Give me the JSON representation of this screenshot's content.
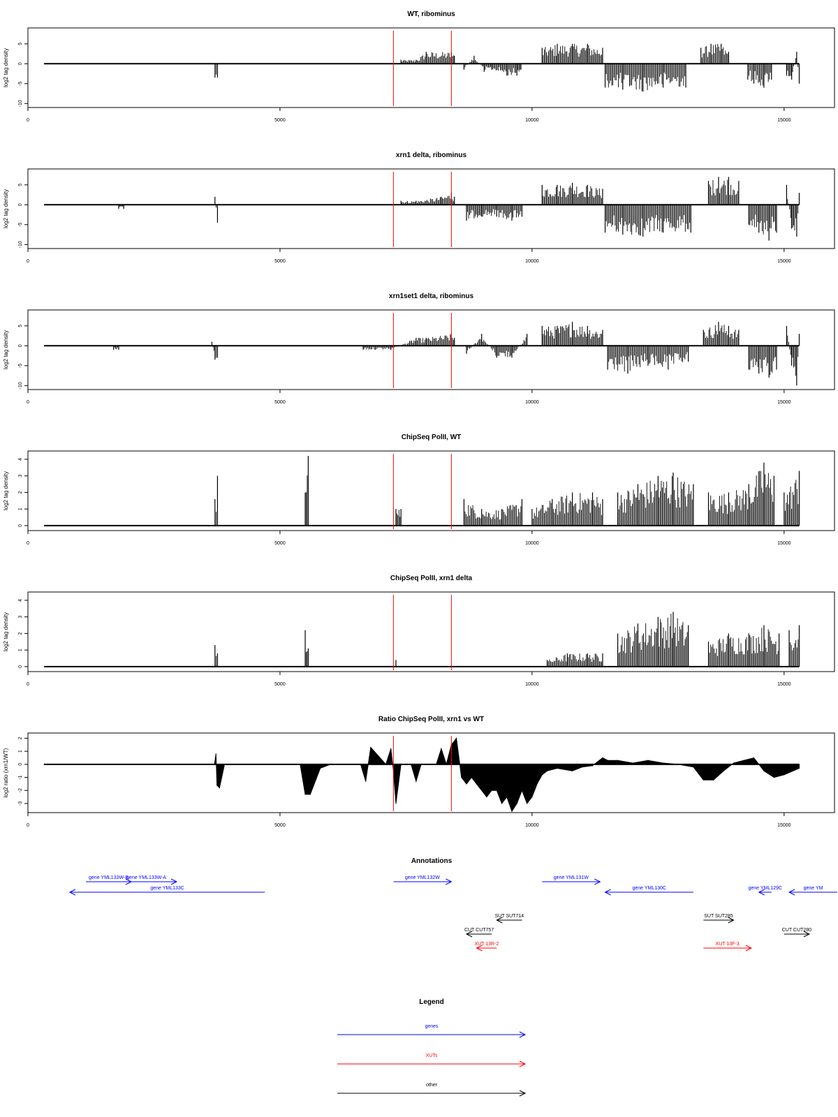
{
  "colors": {
    "genes": "#0000ff",
    "xuts": "#ff0000",
    "other": "#000000",
    "marker": "#ff0000",
    "trace": "#000000"
  },
  "x_axis": {
    "range": [
      0,
      16000
    ],
    "ticks": [
      0,
      5000,
      10000,
      15000
    ],
    "tick_labels": [
      "0",
      "5000",
      "10000",
      "15000"
    ]
  },
  "red_markers": [
    7250,
    8400
  ],
  "chart_data": [
    {
      "type": "bar",
      "title": "WT, ribominus",
      "ylabel": "log2 tag density",
      "ylim": [
        -11,
        9
      ],
      "yticks": [
        -10,
        -5,
        0,
        5
      ],
      "ytick_labels": [
        "-10",
        "-5",
        "0",
        "5"
      ],
      "x_extent": [
        320,
        15300
      ],
      "series": [
        {
          "x": [
            3710,
            3760
          ],
          "values": [
            -3.5,
            -3.5
          ]
        },
        {
          "x": [
            7400,
            7700,
            7900,
            8400,
            8460
          ],
          "values": [
            1,
            1,
            3,
            3,
            2
          ]
        },
        {
          "x": [
            8650,
            8850,
            9050,
            9200,
            9500,
            9700,
            9780
          ],
          "values": [
            -1.5,
            2,
            -2,
            -1.5,
            -3,
            -3,
            -1.5
          ]
        },
        {
          "x": [
            10200,
            10500,
            10800,
            11100,
            11400
          ],
          "values": [
            4,
            5,
            5,
            5,
            4
          ]
        },
        {
          "x": [
            11450,
            11800,
            12200,
            12600,
            13050
          ],
          "values": [
            -6,
            -6.5,
            -7,
            -6,
            -6
          ]
        },
        {
          "x": [
            13350,
            13550,
            13750,
            13900
          ],
          "values": [
            4,
            5,
            5,
            3
          ]
        },
        {
          "x": [
            14280,
            14400,
            14600,
            14750
          ],
          "values": [
            -4,
            -5,
            -6,
            -4
          ]
        },
        {
          "x": [
            15050,
            15150,
            15250,
            15300
          ],
          "values": [
            -3,
            -4,
            3,
            -5
          ]
        }
      ]
    },
    {
      "type": "bar",
      "title": "xrn1 delta, ribominus",
      "ylabel": "log2 tag density",
      "ylim": [
        -11,
        9
      ],
      "yticks": [
        -10,
        -5,
        0,
        5
      ],
      "ytick_labels": [
        "-10",
        "-5",
        "0",
        "5"
      ],
      "x_extent": [
        320,
        15300
      ],
      "series": [
        {
          "x": [
            1800,
            1900
          ],
          "values": [
            -1,
            -1
          ]
        },
        {
          "x": [
            3710,
            3760
          ],
          "values": [
            2,
            -4.5
          ]
        },
        {
          "x": [
            7400,
            7700,
            8200,
            8400,
            8460
          ],
          "values": [
            1,
            1,
            2,
            3,
            2
          ]
        },
        {
          "x": [
            8700,
            9000,
            9300,
            9600,
            9800
          ],
          "values": [
            -4,
            -3,
            -3,
            -4,
            -3
          ]
        },
        {
          "x": [
            10200,
            10500,
            10800,
            11100,
            11400
          ],
          "values": [
            5,
            5,
            5.5,
            5,
            4
          ]
        },
        {
          "x": [
            11450,
            11800,
            12200,
            12600,
            13150
          ],
          "values": [
            -7,
            -7.5,
            -8,
            -7,
            -7
          ]
        },
        {
          "x": [
            13500,
            13700,
            13900,
            14100
          ],
          "values": [
            6,
            7,
            7,
            6
          ]
        },
        {
          "x": [
            14300,
            14500,
            14700,
            14850
          ],
          "values": [
            -5,
            -7,
            -9,
            -7
          ]
        },
        {
          "x": [
            15050,
            15150,
            15250,
            15300
          ],
          "values": [
            5,
            -6,
            -8,
            3
          ]
        }
      ]
    },
    {
      "type": "bar",
      "title": "xrn1set1 delta, ribominus",
      "ylabel": "log2 tag density",
      "ylim": [
        -11,
        9
      ],
      "yticks": [
        -10,
        -5,
        0,
        5
      ],
      "ytick_labels": [
        "-10",
        "-5",
        "0",
        "5"
      ],
      "x_extent": [
        320,
        15300
      ],
      "series": [
        {
          "x": [
            1700,
            1800
          ],
          "values": [
            -1,
            -1
          ]
        },
        {
          "x": [
            3650,
            3710,
            3760
          ],
          "values": [
            1,
            -3.5,
            -3
          ]
        },
        {
          "x": [
            6650,
            7200,
            7700,
            7900,
            8400,
            8460
          ],
          "values": [
            -1,
            -1,
            2,
            2,
            3,
            2
          ]
        },
        {
          "x": [
            8700,
            9000,
            9300,
            9600,
            9900
          ],
          "values": [
            -2,
            3,
            -3,
            -3,
            3
          ]
        },
        {
          "x": [
            10200,
            10500,
            10800,
            11100,
            11400
          ],
          "values": [
            5,
            5,
            6,
            5,
            4
          ]
        },
        {
          "x": [
            11500,
            11900,
            12300,
            12700,
            13100
          ],
          "values": [
            -6,
            -7,
            -5,
            -6,
            -4
          ]
        },
        {
          "x": [
            13400,
            13700,
            13900,
            14100
          ],
          "values": [
            4,
            6,
            5,
            4
          ]
        },
        {
          "x": [
            14300,
            14500,
            14700,
            14850
          ],
          "values": [
            -6,
            -7,
            -8,
            -6
          ]
        },
        {
          "x": [
            15050,
            15150,
            15250,
            15300
          ],
          "values": [
            5,
            -5,
            -10,
            3
          ]
        }
      ]
    },
    {
      "type": "bar",
      "title": "ChipSeq PolII, WT",
      "ylabel": "log2 tag density",
      "ylim": [
        -0.3,
        4.5
      ],
      "yticks": [
        0,
        1,
        2,
        3,
        4
      ],
      "ytick_labels": [
        "0",
        "1",
        "2",
        "3",
        "4"
      ],
      "x_extent": [
        320,
        15300
      ],
      "series": [
        {
          "x": [
            3710,
            3760
          ],
          "values": [
            1.6,
            3
          ]
        },
        {
          "x": [
            5500,
            5560
          ],
          "values": [
            2,
            4.2
          ]
        },
        {
          "x": [
            7300,
            7400
          ],
          "values": [
            1,
            1
          ]
        },
        {
          "x": [
            8650,
            9000,
            9400,
            9800
          ],
          "values": [
            1.6,
            1,
            1,
            1.6
          ]
        },
        {
          "x": [
            10000,
            10400,
            10800,
            11200,
            11400
          ],
          "values": [
            1,
            1.6,
            2,
            2,
            1.6
          ]
        },
        {
          "x": [
            11700,
            12100,
            12500,
            12800,
            13200
          ],
          "values": [
            2,
            2.5,
            3,
            3.2,
            2.5
          ]
        },
        {
          "x": [
            13500,
            13900,
            14300,
            14600,
            14800
          ],
          "values": [
            2,
            2,
            2.5,
            3.8,
            3
          ]
        },
        {
          "x": [
            15000,
            15300
          ],
          "values": [
            2,
            3.3
          ]
        }
      ]
    },
    {
      "type": "bar",
      "title": "ChipSeq PolII, xrn1 delta",
      "ylabel": "log2 tag density",
      "ylim": [
        -0.3,
        4.5
      ],
      "yticks": [
        0,
        1,
        2,
        3,
        4
      ],
      "ytick_labels": [
        "0",
        "1",
        "2",
        "3",
        "4"
      ],
      "x_extent": [
        320,
        15300
      ],
      "series": [
        {
          "x": [
            3710,
            3760
          ],
          "values": [
            1.3,
            0.8
          ]
        },
        {
          "x": [
            5500,
            5560
          ],
          "values": [
            2.2,
            1.1
          ]
        },
        {
          "x": [
            7300
          ],
          "values": [
            0.4
          ]
        },
        {
          "x": [
            10300,
            10700,
            11100,
            11400
          ],
          "values": [
            0.4,
            0.8,
            0.8,
            0.8
          ]
        },
        {
          "x": [
            11700,
            12100,
            12500,
            12800,
            13100
          ],
          "values": [
            2,
            2.6,
            3,
            3.3,
            2.5
          ]
        },
        {
          "x": [
            13500,
            13900,
            14300,
            14600,
            14900
          ],
          "values": [
            1.5,
            2,
            2,
            2.5,
            2
          ]
        },
        {
          "x": [
            15100,
            15300
          ],
          "values": [
            2.2,
            2.5
          ]
        }
      ]
    },
    {
      "type": "area",
      "title": "Ratio ChipSeq PolII, xrn1 vs WT",
      "ylabel": "log2 ratio (xrn1/WT)",
      "ylim": [
        -3.7,
        2.4
      ],
      "yticks": [
        -3,
        -2,
        -1,
        0,
        1,
        2
      ],
      "ytick_labels": [
        "-3",
        "-2",
        "-1",
        "0",
        "1",
        "2"
      ],
      "x_extent": [
        320,
        15300
      ],
      "x": [
        320,
        3700,
        3730,
        3750,
        3800,
        3900,
        5400,
        5500,
        5600,
        5800,
        6000,
        6600,
        6700,
        6800,
        7100,
        7200,
        7250,
        7300,
        7400,
        7600,
        7700,
        7800,
        8100,
        8200,
        8300,
        8400,
        8500,
        8600,
        8700,
        8800,
        8900,
        9000,
        9100,
        9200,
        9300,
        9400,
        9500,
        9600,
        9700,
        9800,
        9900,
        10000,
        10100,
        10200,
        10300,
        10500,
        10800,
        11000,
        11200,
        11400,
        11500,
        11700,
        12000,
        12300,
        12600,
        12900,
        13200,
        13400,
        13600,
        13800,
        14000,
        14200,
        14400,
        14600,
        14800,
        15000,
        15300
      ],
      "values": [
        0,
        0,
        0.8,
        -1.6,
        -1.8,
        0,
        0,
        -2.3,
        -2.3,
        -0.3,
        0,
        0,
        -1.3,
        1.3,
        0,
        1.2,
        -0.5,
        -3,
        0,
        0,
        -1.3,
        0,
        0,
        1.2,
        0,
        1.5,
        2,
        -1,
        -1.5,
        -1,
        -1.5,
        -2,
        -2.5,
        -2,
        -2,
        -3,
        -2.5,
        -3.6,
        -3,
        -2,
        -3,
        -2.5,
        -1.5,
        -0.8,
        -0.5,
        -0.3,
        -0.5,
        -0.2,
        -0.1,
        0.5,
        0.3,
        0.3,
        0.1,
        0.3,
        0.1,
        0,
        -0.2,
        -1.2,
        -1.2,
        -0.5,
        0.1,
        0.3,
        0.5,
        -0.5,
        -1,
        -0.8,
        -0.3
      ]
    }
  ],
  "annotations": {
    "title": "Annotations",
    "features": [
      {
        "label": "gene YML133W-B",
        "kind": "genes",
        "start": 1150,
        "end": 2050,
        "strand": "+",
        "row": 0
      },
      {
        "label": "gene YML133W-A",
        "kind": "genes",
        "start": 1750,
        "end": 2950,
        "strand": "+",
        "row": 0
      },
      {
        "label": "gene YML133C",
        "kind": "genes",
        "start": 830,
        "end": 4700,
        "strand": "-",
        "row": 1
      },
      {
        "label": "gene YML132W",
        "kind": "genes",
        "start": 7250,
        "end": 8400,
        "strand": "+",
        "row": 0
      },
      {
        "label": "gene YML131W",
        "kind": "genes",
        "start": 10200,
        "end": 11350,
        "strand": "+",
        "row": 0
      },
      {
        "label": "gene YML130C",
        "kind": "genes",
        "start": 11450,
        "end": 13200,
        "strand": "-",
        "row": 1
      },
      {
        "label": "gene YML129C",
        "kind": "genes",
        "start": 14500,
        "end": 14750,
        "strand": "-",
        "row": 1
      },
      {
        "label": "gene YM",
        "kind": "genes",
        "start": 15100,
        "end": 16200,
        "strand": "-",
        "row": 1
      },
      {
        "label": "SUT SUT714",
        "kind": "other",
        "start": 9300,
        "end": 9800,
        "strand": "-",
        "row": 3
      },
      {
        "label": "CUT CUT757",
        "kind": "other",
        "start": 8700,
        "end": 9200,
        "strand": "-",
        "row": 4
      },
      {
        "label": "XUT 13R-2",
        "kind": "xuts",
        "start": 8900,
        "end": 9300,
        "strand": "-",
        "row": 5
      },
      {
        "label": "SUT SUT285",
        "kind": "other",
        "start": 13400,
        "end": 14000,
        "strand": "+",
        "row": 3
      },
      {
        "label": "CUT CUT280",
        "kind": "other",
        "start": 15000,
        "end": 15500,
        "strand": "+",
        "row": 4
      },
      {
        "label": "XUT 13F-3",
        "kind": "xuts",
        "start": 13400,
        "end": 14350,
        "strand": "+",
        "row": 5
      }
    ]
  },
  "legend": {
    "title": "Legend",
    "entries": [
      {
        "label": "genes",
        "kind": "genes"
      },
      {
        "label": "XUTs",
        "kind": "xuts"
      },
      {
        "label": "other",
        "kind": "other"
      }
    ]
  }
}
